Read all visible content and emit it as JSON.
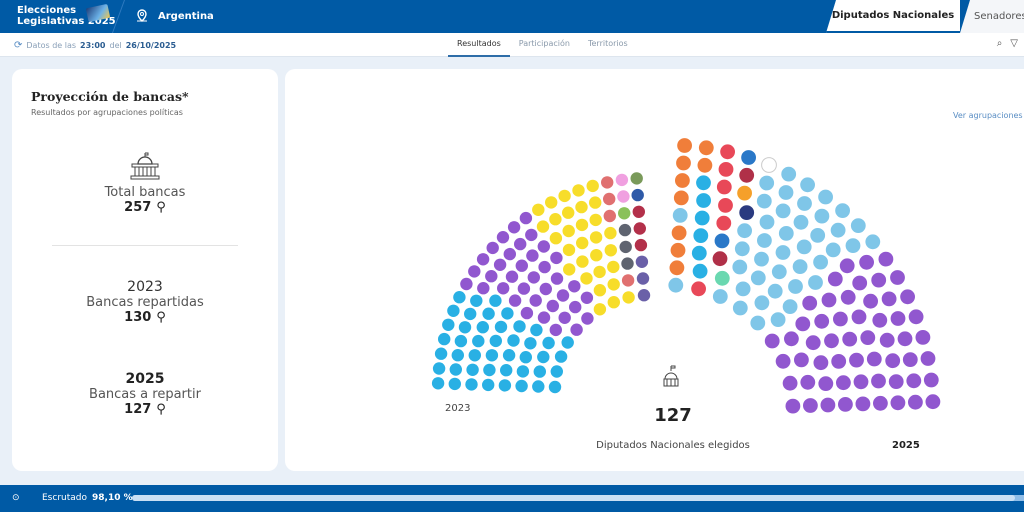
{
  "header": {
    "brand_line1": "Elecciones",
    "brand_line2": "Legislativas 2025",
    "location": "Argentina",
    "tabs": [
      {
        "label": "Diputados Nacionales",
        "active": true
      },
      {
        "label": "Senadores",
        "active": false
      }
    ]
  },
  "subbar": {
    "prefix": "Datos de las",
    "time": "23:00",
    "mid": "del",
    "date": "26/10/2025",
    "nav": [
      "Resultados",
      "Participación",
      "Territorios"
    ],
    "active_nav": "Resultados"
  },
  "summary": {
    "title": "Proyección de bancas*",
    "subtitle": "Resultados por agrupaciones políticas",
    "total_label": "Total bancas",
    "total": "257",
    "year_2023": "2023",
    "repartidas_label": "Bancas repartidas",
    "repartidas": "130",
    "year_2025": "2025",
    "a_repartir_label": "Bancas a repartir",
    "a_repartir": "127"
  },
  "chart_panel": {
    "link": "Ver agrupaciones",
    "label_2023": "2023",
    "label_2025": "2025",
    "center_number": "127",
    "center_label": "Diputados Nacionales elegidos"
  },
  "chart_data": {
    "type": "parliament",
    "left_2023": {
      "total": 130,
      "groups": [
        {
          "color": "#29b0e4",
          "seats": 45
        },
        {
          "color": "#9157cf",
          "seats": 37
        },
        {
          "color": "#f7dd2a",
          "seats": 30
        },
        {
          "color": "#e07070",
          "seats": 4
        },
        {
          "color": "#5f6470",
          "seats": 3
        },
        {
          "color": "#8ac15a",
          "seats": 1
        },
        {
          "color": "#f0a0e0",
          "seats": 2
        },
        {
          "color": "#6a60a8",
          "seats": 3
        },
        {
          "color": "#b3304a",
          "seats": 3
        },
        {
          "color": "#2e5aa8",
          "seats": 1
        },
        {
          "color": "#7a9a5a",
          "seats": 1
        }
      ]
    },
    "right_2025": {
      "total": 127,
      "groups": [
        {
          "color": "#7fc6e8",
          "seats": 2
        },
        {
          "color": "#f07e3a",
          "seats": 9
        },
        {
          "color": "#29b0e4",
          "seats": 6
        },
        {
          "color": "#e84858",
          "seats": 6
        },
        {
          "color": "#2a78c8",
          "seats": 2
        },
        {
          "color": "#b03048",
          "seats": 2
        },
        {
          "color": "#f5a02a",
          "seats": 1
        },
        {
          "color": "#2a3a80",
          "seats": 1
        },
        {
          "color": "#6ad8b0",
          "seats": 1
        },
        {
          "color": "#ffffff",
          "seats": 1
        },
        {
          "color": "#7fc6e8",
          "seats": 40
        },
        {
          "color": "#9157cf",
          "seats": 56
        }
      ]
    }
  },
  "footer": {
    "label": "Escrutado",
    "value": "98,10 %",
    "progress": 98.1
  },
  "colors": {
    "brand": "#005aa5"
  }
}
